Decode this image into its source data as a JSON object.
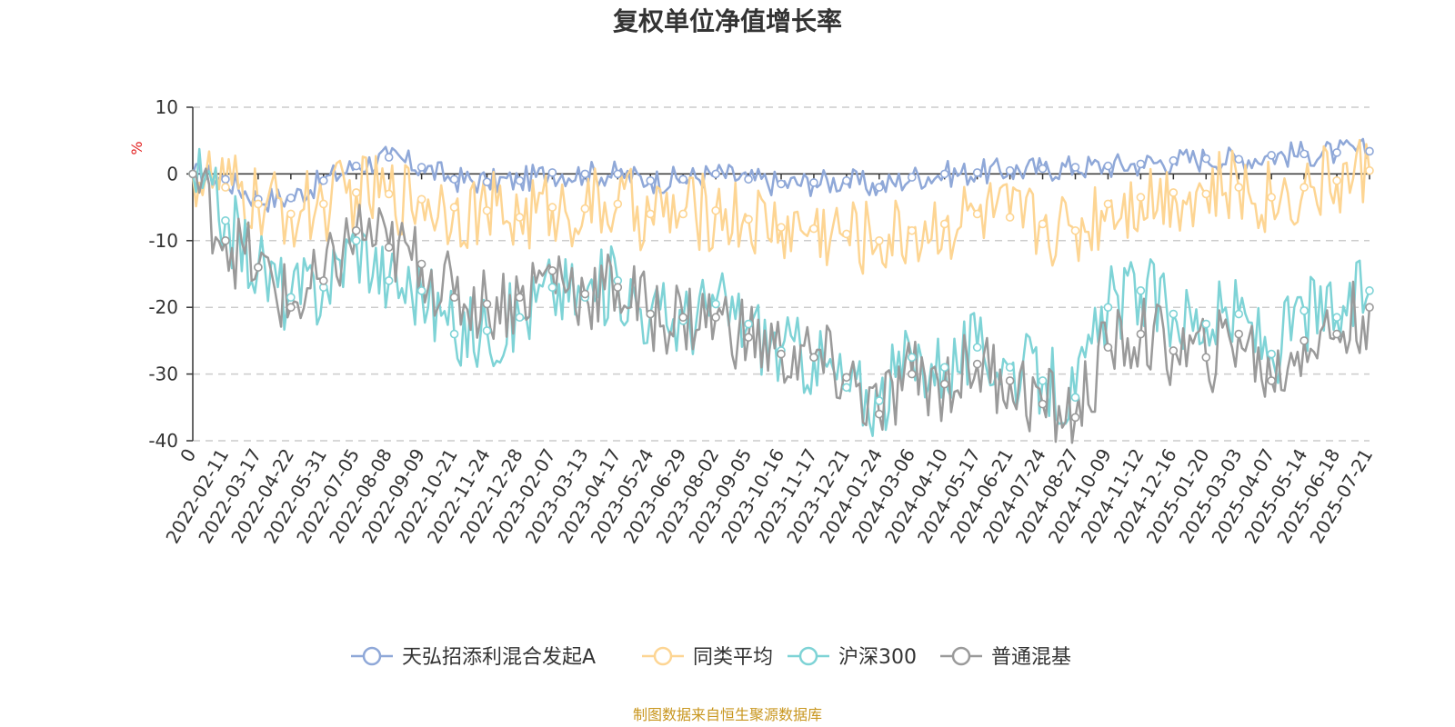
{
  "chart_data": {
    "type": "line",
    "title": "复权单位净值增长率",
    "ylabel": "%",
    "ylim": [
      -40,
      10
    ],
    "yticks": [
      10,
      0,
      -10,
      -20,
      -30,
      -40
    ],
    "grid": true,
    "legend_position": "bottom",
    "x_tick_labels": [
      "0",
      "2022-02-11",
      "2022-03-17",
      "2022-04-22",
      "2022-05-31",
      "2022-07-05",
      "2022-08-08",
      "2022-09-09",
      "2022-10-21",
      "2022-11-24",
      "2022-12-28",
      "2023-02-07",
      "2023-03-13",
      "2023-04-17",
      "2023-05-24",
      "2023-06-29",
      "2023-08-02",
      "2023-09-05",
      "2023-10-16",
      "2023-11-17",
      "2023-12-21",
      "2024-01-24",
      "2024-03-06",
      "2024-04-10",
      "2024-05-17",
      "2024-06-21",
      "2024-07-24",
      "2024-08-27",
      "2024-10-09",
      "2024-11-12",
      "2024-12-16",
      "2025-01-20",
      "2025-03-03",
      "2025-04-07",
      "2025-05-14",
      "2025-06-18",
      "2025-07-21"
    ],
    "series": [
      {
        "name": "天弘招添利混合发起A",
        "color": "#8fa8d8",
        "values": [
          0,
          -0.8,
          -3.8,
          -3.6,
          -1.0,
          1.2,
          2.5,
          1.0,
          -0.8,
          -1.2,
          -1.0,
          0.2,
          0.0,
          0.0,
          -1.0,
          -0.8,
          0.0,
          -0.8,
          -1.5,
          -1.3,
          -1.0,
          -2.0,
          -0.5,
          0.0,
          0.2,
          0.5,
          0.8,
          1.0,
          1.2,
          1.5,
          2.0,
          2.3,
          2.2,
          2.8,
          3.0,
          3.2,
          3.4
        ]
      },
      {
        "name": "同类平均",
        "color": "#fdd593",
        "values": [
          0,
          -2.0,
          -4.5,
          -6.0,
          -4.5,
          -2.8,
          -3.0,
          -3.8,
          -5.0,
          -5.5,
          -6.5,
          -5.0,
          -5.2,
          -4.5,
          -6.0,
          -6.0,
          -5.5,
          -6.8,
          -8.0,
          -8.2,
          -9.0,
          -10.0,
          -8.5,
          -7.5,
          -6.0,
          -6.5,
          -7.5,
          -8.5,
          -4.5,
          -3.5,
          -2.8,
          -3.0,
          -2.0,
          -3.5,
          -2.0,
          -1.0,
          0.5
        ]
      },
      {
        "name": "沪深300",
        "color": "#7ed3d6",
        "values": [
          0,
          -7.0,
          -14.0,
          -18.5,
          -17.0,
          -10.0,
          -16.0,
          -17.5,
          -24.0,
          -23.5,
          -21.5,
          -17.0,
          -18.5,
          -16.0,
          -21.0,
          -22.0,
          -19.5,
          -22.5,
          -26.5,
          -27.5,
          -32.0,
          -34.0,
          -27.5,
          -29.0,
          -26.0,
          -29.0,
          -31.0,
          -33.5,
          -20.0,
          -17.5,
          -21.0,
          -22.5,
          -21.0,
          -27.0,
          -20.5,
          -21.5,
          -17.5
        ]
      },
      {
        "name": "普通混基",
        "color": "#9a9a9a",
        "values": [
          0,
          -10.0,
          -14.0,
          -20.0,
          -16.0,
          -8.5,
          -11.0,
          -13.5,
          -18.5,
          -19.5,
          -18.5,
          -14.5,
          -18.0,
          -17.0,
          -21.0,
          -21.5,
          -21.5,
          -24.5,
          -27.0,
          -27.5,
          -30.5,
          -36.0,
          -30.0,
          -31.5,
          -28.5,
          -31.0,
          -34.5,
          -36.5,
          -26.0,
          -24.0,
          -26.5,
          -27.5,
          -24.0,
          -31.0,
          -25.0,
          -24.0,
          -20.0
        ]
      }
    ]
  },
  "source_text": "制图数据来自恒生聚源数据库"
}
